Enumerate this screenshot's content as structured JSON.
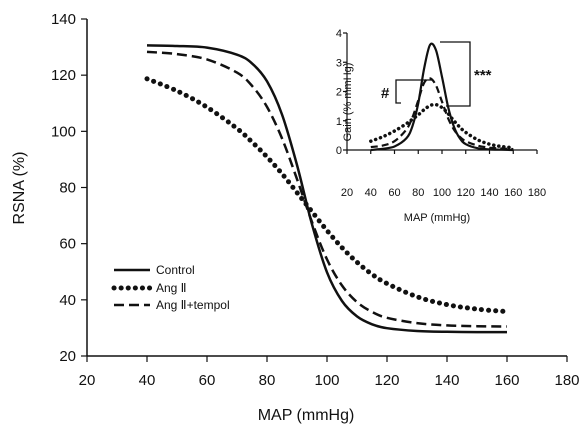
{
  "chart_data": [
    {
      "type": "line",
      "xlabel": "MAP (mmHg)",
      "ylabel": "RSNA (%)",
      "xlim": [
        20,
        180
      ],
      "ylim": [
        20,
        140
      ],
      "xticks": [
        "20",
        "40",
        "60",
        "80",
        "100",
        "120",
        "140",
        "160",
        "180"
      ],
      "yticks": [
        "20",
        "40",
        "60",
        "80",
        "100",
        "120",
        "140"
      ],
      "grid": false,
      "legend_position": "bottom-left",
      "x": [
        40,
        50,
        60,
        70,
        75,
        80,
        85,
        90,
        95,
        100,
        105,
        110,
        115,
        120,
        130,
        140,
        150,
        160
      ],
      "series": [
        {
          "name": "Control",
          "style": "solid",
          "values": [
            130.6,
            130.4,
            129.8,
            127.3,
            124.2,
            117.8,
            106.0,
            88.0,
            66.9,
            49.8,
            39.6,
            34.1,
            31.3,
            29.9,
            28.9,
            28.6,
            28.5,
            28.5
          ]
        },
        {
          "name": "Ang Ⅱ",
          "style": "dotted",
          "values": [
            118.7,
            114.4,
            108.6,
            101.0,
            96.2,
            90.9,
            84.9,
            78.2,
            71.4,
            64.7,
            58.6,
            53.4,
            49.1,
            45.8,
            41.1,
            38.3,
            36.7,
            35.8
          ]
        },
        {
          "name": "Ang Ⅱ+tempol",
          "style": "dashed",
          "values": [
            128.3,
            127.5,
            125.6,
            120.9,
            116.2,
            108.7,
            97.5,
            83.0,
            67.7,
            54.4,
            45.1,
            39.2,
            35.7,
            33.6,
            31.7,
            30.9,
            30.6,
            30.5
          ]
        }
      ]
    },
    {
      "type": "line",
      "xlabel": "MAP (mmHg)",
      "ylabel": "Gain (% mmHg)",
      "xlim": [
        20,
        180
      ],
      "ylim": [
        0,
        4
      ],
      "xticks": [
        "20",
        "40",
        "60",
        "80",
        "100",
        "120",
        "140",
        "160",
        "180"
      ],
      "yticks": [
        "0",
        "1",
        "2",
        "3",
        "4"
      ],
      "x": [
        40,
        50,
        60,
        70,
        75,
        80,
        85,
        90,
        95,
        100,
        105,
        110,
        115,
        120,
        130,
        140,
        150,
        160
      ],
      "series": [
        {
          "style": "solid",
          "values": [
            0.0,
            0.04,
            0.12,
            0.4,
            0.8,
            1.6,
            2.8,
            3.6,
            3.4,
            2.5,
            1.5,
            0.8,
            0.4,
            0.2,
            0.06,
            0.02,
            0.01,
            0.0
          ]
        },
        {
          "style": "dotted",
          "values": [
            0.3,
            0.45,
            0.65,
            0.9,
            1.05,
            1.2,
            1.38,
            1.52,
            1.55,
            1.45,
            1.25,
            1.0,
            0.78,
            0.6,
            0.35,
            0.2,
            0.12,
            0.08
          ]
        },
        {
          "style": "dashed",
          "values": [
            0.1,
            0.15,
            0.3,
            0.7,
            1.1,
            1.7,
            2.3,
            2.45,
            2.2,
            1.65,
            1.1,
            0.7,
            0.45,
            0.3,
            0.15,
            0.08,
            0.05,
            0.03
          ]
        }
      ],
      "annotations": [
        "#",
        "***"
      ]
    }
  ]
}
